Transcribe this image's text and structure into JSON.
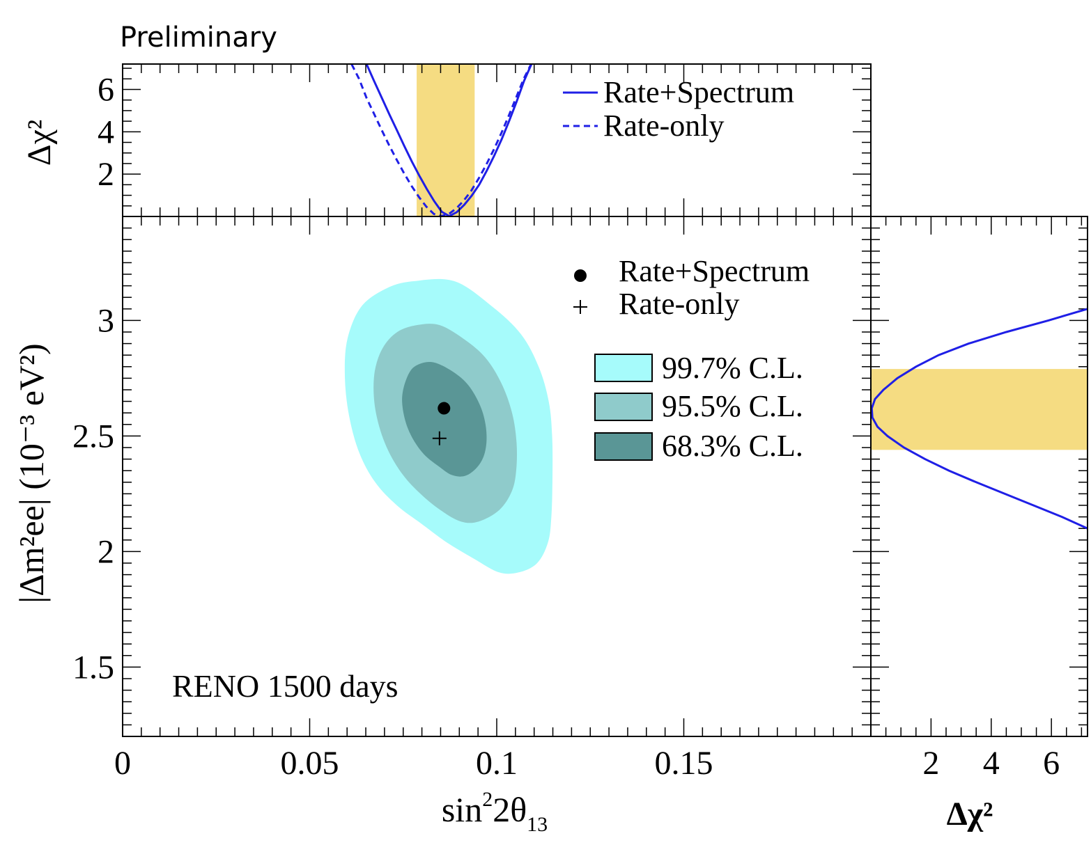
{
  "chart_data": {
    "type": "contour",
    "header": "Preliminary",
    "annotation": "RENO 1500 days",
    "main": {
      "xlabel_base": "sin",
      "xlabel_sup": "2",
      "xlabel_mid": "2θ",
      "xlabel_sub": "13",
      "ylabel": "|Δm²ee| (10⁻³ eV²)",
      "xlim": [
        0,
        0.2
      ],
      "ylim": [
        1.2,
        3.45
      ],
      "xticks": [
        {
          "v": 0,
          "label": "0"
        },
        {
          "v": 0.05,
          "label": "0.05"
        },
        {
          "v": 0.1,
          "label": "0.1"
        },
        {
          "v": 0.15,
          "label": "0.15"
        }
      ],
      "yticks": [
        {
          "v": 1.5,
          "label": "1.5"
        },
        {
          "v": 2.0,
          "label": "2"
        },
        {
          "v": 2.5,
          "label": "2.5"
        },
        {
          "v": 3.0,
          "label": "3"
        }
      ],
      "best_fit_rate_spectrum": {
        "x": 0.0859,
        "y": 2.62
      },
      "best_fit_rate_only": {
        "x": 0.0847,
        "y": 2.49
      },
      "contours": [
        {
          "name": "99.7% C.L.",
          "color": "#a6fbfb",
          "points": [
            [
              0.0887,
              3.17
            ],
            [
              0.0988,
              3.06
            ],
            [
              0.1065,
              2.94
            ],
            [
              0.1112,
              2.8
            ],
            [
              0.1139,
              2.65
            ],
            [
              0.1148,
              2.5
            ],
            [
              0.1149,
              2.32
            ],
            [
              0.1146,
              2.15
            ],
            [
              0.1137,
              2.04
            ],
            [
              0.1108,
              1.95
            ],
            [
              0.1059,
              1.91
            ],
            [
              0.1006,
              1.91
            ],
            [
              0.0938,
              1.97
            ],
            [
              0.0866,
              2.04
            ],
            [
              0.0799,
              2.12
            ],
            [
              0.0733,
              2.2
            ],
            [
              0.0675,
              2.3
            ],
            [
              0.0632,
              2.43
            ],
            [
              0.0605,
              2.59
            ],
            [
              0.0594,
              2.76
            ],
            [
              0.0601,
              2.92
            ],
            [
              0.0638,
              3.06
            ],
            [
              0.0707,
              3.14
            ],
            [
              0.0778,
              3.17
            ]
          ]
        },
        {
          "name": "95.5% C.L.",
          "color": "#8fcbcb",
          "points": [
            [
              0.0847,
              2.98
            ],
            [
              0.0912,
              2.92
            ],
            [
              0.0969,
              2.84
            ],
            [
              0.1012,
              2.73
            ],
            [
              0.1041,
              2.6
            ],
            [
              0.1053,
              2.47
            ],
            [
              0.1052,
              2.35
            ],
            [
              0.104,
              2.26
            ],
            [
              0.1007,
              2.18
            ],
            [
              0.0952,
              2.13
            ],
            [
              0.0904,
              2.13
            ],
            [
              0.0849,
              2.18
            ],
            [
              0.0796,
              2.25
            ],
            [
              0.075,
              2.33
            ],
            [
              0.0712,
              2.43
            ],
            [
              0.0686,
              2.54
            ],
            [
              0.0672,
              2.66
            ],
            [
              0.0674,
              2.78
            ],
            [
              0.0695,
              2.88
            ],
            [
              0.0734,
              2.95
            ],
            [
              0.0787,
              2.98
            ]
          ]
        },
        {
          "name": "68.3% C.L.",
          "color": "#5a9696",
          "points": [
            [
              0.0827,
              2.82
            ],
            [
              0.0881,
              2.78
            ],
            [
              0.0924,
              2.72
            ],
            [
              0.0956,
              2.63
            ],
            [
              0.0971,
              2.54
            ],
            [
              0.0971,
              2.45
            ],
            [
              0.0955,
              2.38
            ],
            [
              0.092,
              2.33
            ],
            [
              0.0882,
              2.33
            ],
            [
              0.0844,
              2.37
            ],
            [
              0.0806,
              2.42
            ],
            [
              0.0775,
              2.49
            ],
            [
              0.0755,
              2.57
            ],
            [
              0.0747,
              2.66
            ],
            [
              0.0757,
              2.74
            ],
            [
              0.078,
              2.8
            ]
          ]
        }
      ],
      "legend": [
        {
          "label": "Rate+Spectrum",
          "marker": "dot"
        },
        {
          "label": "Rate-only",
          "marker": "plus"
        },
        {
          "label": "99.7% C.L.",
          "color": "#a6fbfb"
        },
        {
          "label": "95.5% C.L.",
          "color": "#8fcbcb"
        },
        {
          "label": "68.3% C.L.",
          "color": "#5a9696"
        }
      ]
    },
    "top": {
      "ylabel": "Δχ²",
      "ylim": [
        0,
        7.2
      ],
      "yticks": [
        {
          "v": 2,
          "label": "2"
        },
        {
          "v": 4,
          "label": "4"
        },
        {
          "v": 6,
          "label": "6"
        }
      ],
      "band": {
        "x_from": 0.0786,
        "x_to": 0.0941,
        "color": "#f5dc82"
      },
      "series": [
        {
          "name": "Rate+Spectrum",
          "style": "solid",
          "color": "#1f1fe6",
          "x": [
            0.0652,
            0.0672,
            0.0693,
            0.0713,
            0.0733,
            0.0753,
            0.0773,
            0.0793,
            0.0813,
            0.0833,
            0.0853,
            0.0873,
            0.0893,
            0.0913,
            0.0933,
            0.0953,
            0.0973,
            0.0993,
            0.1013,
            0.1033,
            0.1053,
            0.1073,
            0.1093
          ],
          "y": [
            7.2,
            6.4,
            5.6,
            4.82,
            4.08,
            3.32,
            2.6,
            1.93,
            1.3,
            0.72,
            0.22,
            0.02,
            0.2,
            0.55,
            0.98,
            1.5,
            2.15,
            2.86,
            3.64,
            4.5,
            5.42,
            6.4,
            7.2
          ]
        },
        {
          "name": "Rate-only",
          "style": "dashed",
          "color": "#1f1fe6",
          "x": [
            0.0612,
            0.0632,
            0.0652,
            0.0672,
            0.0692,
            0.0712,
            0.0732,
            0.0752,
            0.0772,
            0.0792,
            0.0812,
            0.0832,
            0.0852,
            0.0872,
            0.0892,
            0.0912,
            0.0932,
            0.0952,
            0.0972,
            0.0992,
            0.1012,
            0.1032,
            0.1052,
            0.1072,
            0.1092
          ],
          "y": [
            7.2,
            6.5,
            5.6,
            4.85,
            4.1,
            3.38,
            2.7,
            2.05,
            1.45,
            0.92,
            0.46,
            0.12,
            0.02,
            0.12,
            0.38,
            0.75,
            1.22,
            1.8,
            2.45,
            3.15,
            3.92,
            4.75,
            5.62,
            6.5,
            7.2
          ]
        }
      ],
      "legend": [
        {
          "label": "Rate+Spectrum",
          "style": "solid"
        },
        {
          "label": "Rate-only",
          "style": "dashed"
        }
      ]
    },
    "right": {
      "xlabel": "Δχ²",
      "xlim": [
        0,
        7.2
      ],
      "xticks": [
        {
          "v": 2,
          "label": "2"
        },
        {
          "v": 4,
          "label": "4"
        },
        {
          "v": 6,
          "label": "6"
        }
      ],
      "band": {
        "y_from": 2.44,
        "y_to": 2.79,
        "color": "#f5dc82"
      },
      "series": [
        {
          "name": "Rate+Spectrum",
          "style": "solid",
          "color": "#1f1fe6",
          "y": [
            3.05,
            3.0,
            2.95,
            2.9,
            2.85,
            2.8,
            2.75,
            2.7,
            2.66,
            2.62,
            2.58,
            2.54,
            2.5,
            2.45,
            2.4,
            2.35,
            2.3,
            2.25,
            2.2,
            2.15,
            2.1
          ],
          "x": [
            7.2,
            5.9,
            4.5,
            3.25,
            2.25,
            1.5,
            0.88,
            0.42,
            0.14,
            0.03,
            0.05,
            0.22,
            0.55,
            1.1,
            1.8,
            2.6,
            3.5,
            4.45,
            5.4,
            6.35,
            7.2
          ]
        }
      ]
    }
  }
}
